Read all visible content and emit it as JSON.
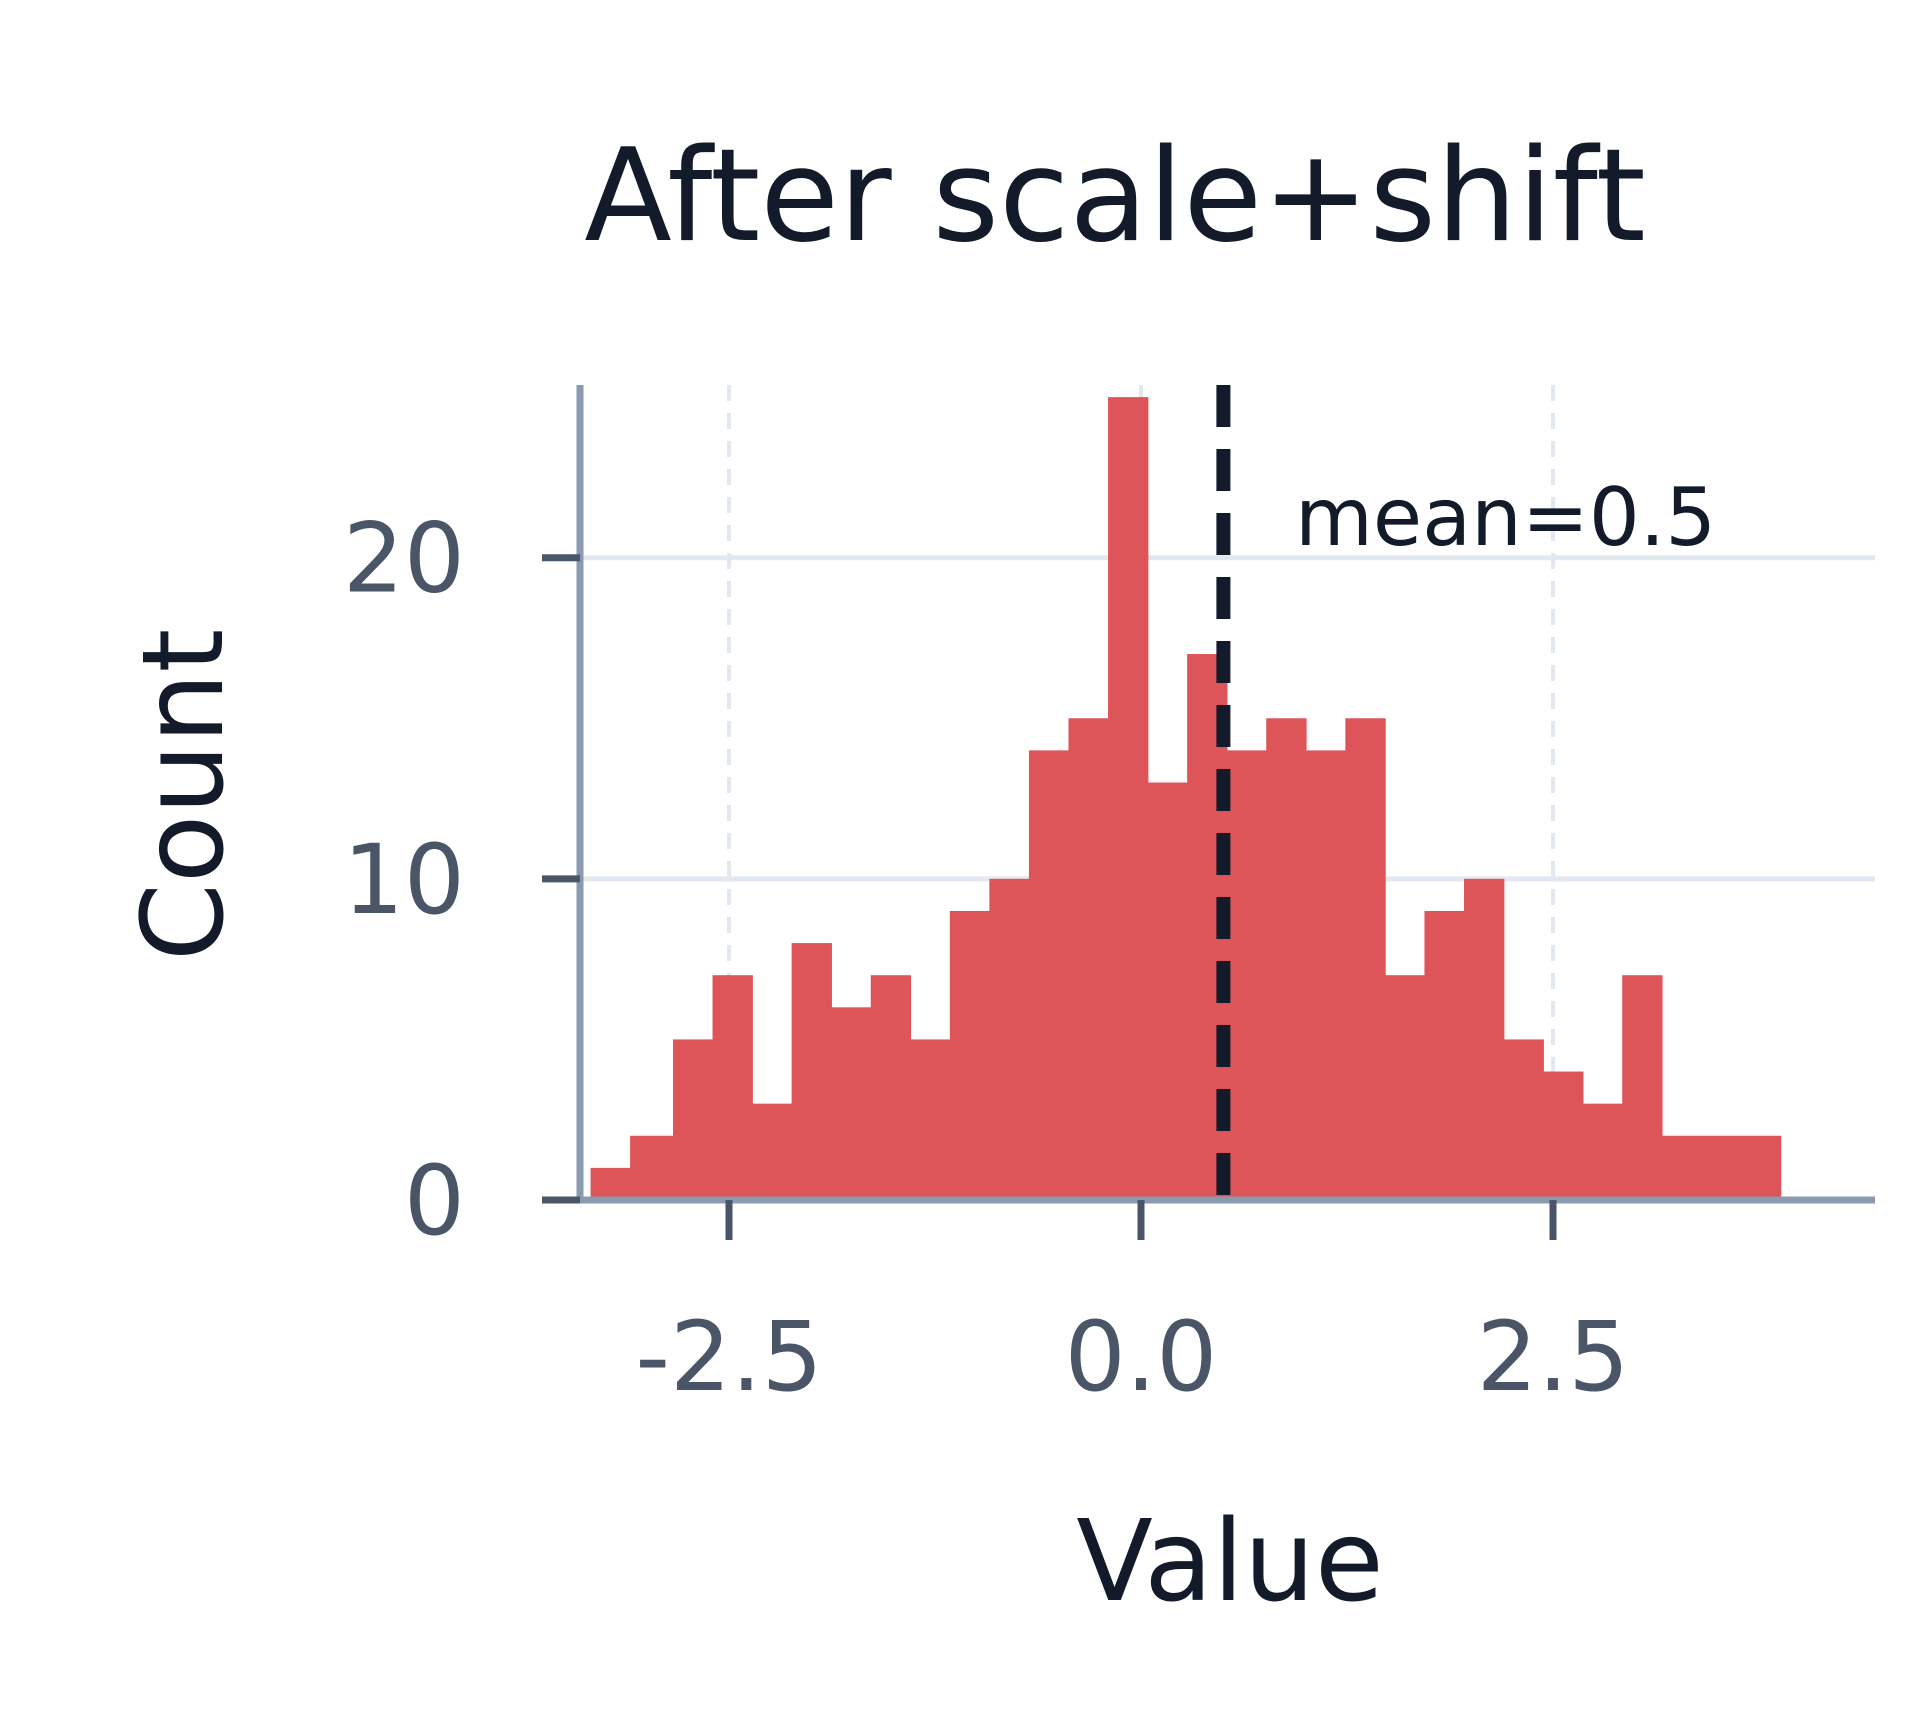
{
  "chart_data": {
    "type": "bar",
    "subtype": "histogram",
    "title": "After scale+shift",
    "xlabel": "Value",
    "ylabel": "Count",
    "xlim": [
      -3.7,
      4.5
    ],
    "ylim": [
      0,
      26
    ],
    "x_ticks": [
      -2.5,
      0.0,
      2.5
    ],
    "x_tick_labels": [
      "-2.5",
      "0.0",
      "2.5"
    ],
    "y_ticks": [
      0,
      10,
      20
    ],
    "y_tick_labels": [
      "0",
      "10",
      "20"
    ],
    "grid": true,
    "bar_color": "#dd5559",
    "bins": [
      {
        "x0": -3.34,
        "x1": -3.1,
        "count": 1
      },
      {
        "x0": -3.1,
        "x1": -2.84,
        "count": 2
      },
      {
        "x0": -2.84,
        "x1": -2.6,
        "count": 5
      },
      {
        "x0": -2.6,
        "x1": -2.36,
        "count": 7
      },
      {
        "x0": -2.36,
        "x1": -2.12,
        "count": 3
      },
      {
        "x0": -2.12,
        "x1": -1.88,
        "count": 8
      },
      {
        "x0": -1.88,
        "x1": -1.64,
        "count": 6
      },
      {
        "x0": -1.64,
        "x1": -1.4,
        "count": 7
      },
      {
        "x0": -1.4,
        "x1": -1.16,
        "count": 5
      },
      {
        "x0": -1.16,
        "x1": -0.92,
        "count": 9
      },
      {
        "x0": -0.92,
        "x1": -0.68,
        "count": 10
      },
      {
        "x0": -0.68,
        "x1": -0.44,
        "count": 14
      },
      {
        "x0": -0.44,
        "x1": -0.2,
        "count": 15
      },
      {
        "x0": -0.2,
        "x1": 0.04,
        "count": 25
      },
      {
        "x0": 0.04,
        "x1": 0.28,
        "count": 13
      },
      {
        "x0": 0.28,
        "x1": 0.52,
        "count": 17
      },
      {
        "x0": 0.52,
        "x1": 0.76,
        "count": 14
      },
      {
        "x0": 0.76,
        "x1": 1.0,
        "count": 15
      },
      {
        "x0": 1.0,
        "x1": 1.24,
        "count": 14
      },
      {
        "x0": 1.24,
        "x1": 1.48,
        "count": 15
      },
      {
        "x0": 1.48,
        "x1": 1.72,
        "count": 7
      },
      {
        "x0": 1.72,
        "x1": 1.96,
        "count": 9
      },
      {
        "x0": 1.96,
        "x1": 2.2,
        "count": 10
      },
      {
        "x0": 2.2,
        "x1": 2.44,
        "count": 5
      },
      {
        "x0": 2.44,
        "x1": 2.68,
        "count": 4
      },
      {
        "x0": 2.68,
        "x1": 2.92,
        "count": 3
      },
      {
        "x0": 2.92,
        "x1": 3.16,
        "count": 7
      },
      {
        "x0": 3.16,
        "x1": 3.4,
        "count": 2
      },
      {
        "x0": 3.4,
        "x1": 3.64,
        "count": 2
      },
      {
        "x0": 3.64,
        "x1": 3.88,
        "count": 2
      }
    ],
    "mean_line": {
      "x": 0.5,
      "label": "mean=0.5",
      "style": "dashed",
      "color": "#131b2b"
    }
  }
}
